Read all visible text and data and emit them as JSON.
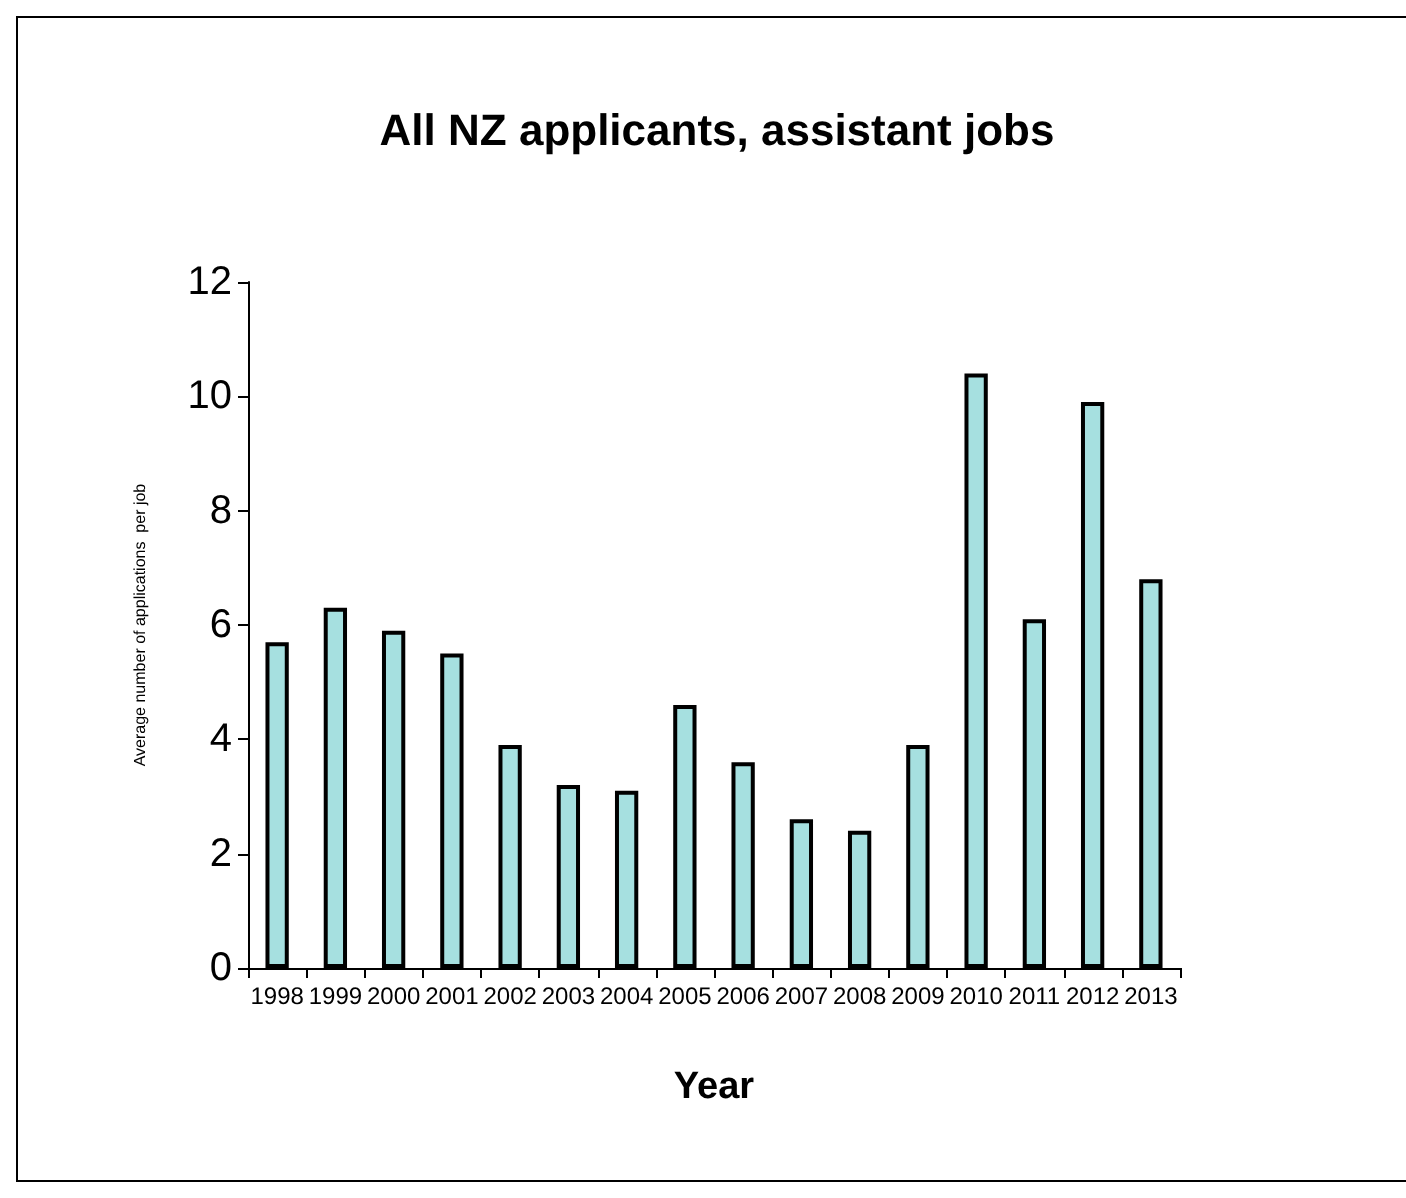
{
  "chart_data": {
    "type": "bar",
    "title": "All NZ applicants, assistant jobs",
    "xlabel": "Year",
    "ylabel": "Average number of applications  per job",
    "categories": [
      "1998",
      "1999",
      "2000",
      "2001",
      "2002",
      "2003",
      "2004",
      "2005",
      "2006",
      "2007",
      "2008",
      "2009",
      "2010",
      "2011",
      "2012",
      "2013"
    ],
    "values": [
      5.7,
      6.3,
      5.9,
      5.5,
      3.9,
      3.2,
      3.1,
      4.6,
      3.6,
      2.6,
      2.4,
      3.9,
      10.4,
      6.1,
      9.9,
      6.8
    ],
    "color": "#a6e0e0",
    "ylim": [
      0,
      12
    ],
    "yticks": [
      0,
      2,
      4,
      6,
      8,
      10,
      12
    ],
    "grid": false
  }
}
